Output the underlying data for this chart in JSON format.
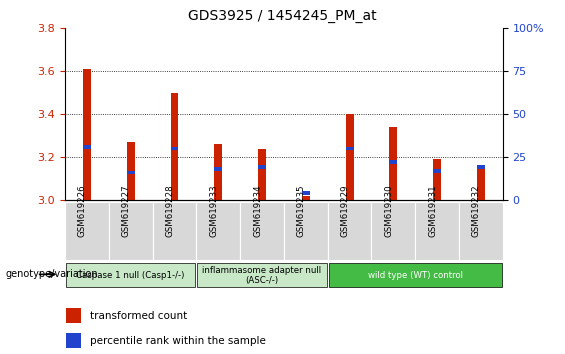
{
  "title": "GDS3925 / 1454245_PM_at",
  "samples": [
    "GSM619226",
    "GSM619227",
    "GSM619228",
    "GSM619233",
    "GSM619234",
    "GSM619235",
    "GSM619229",
    "GSM619230",
    "GSM619231",
    "GSM619232"
  ],
  "red_values": [
    3.61,
    3.27,
    3.5,
    3.26,
    3.24,
    3.02,
    3.4,
    3.34,
    3.19,
    3.16
  ],
  "blue_values": [
    0.31,
    0.16,
    0.3,
    0.18,
    0.19,
    0.04,
    0.3,
    0.22,
    0.17,
    0.19
  ],
  "ylim_left": [
    3.0,
    3.8
  ],
  "ylim_right": [
    0,
    100
  ],
  "yticks_left": [
    3.0,
    3.2,
    3.4,
    3.6,
    3.8
  ],
  "yticks_right": [
    0,
    25,
    50,
    75,
    100
  ],
  "groups": [
    {
      "label": "Caspase 1 null (Casp1-/-)",
      "start": 0,
      "end": 3,
      "color": "#c8e8c8"
    },
    {
      "label": "inflammasome adapter null\n(ASC-/-)",
      "start": 3,
      "end": 6,
      "color": "#c8e8c8"
    },
    {
      "label": "wild type (WT) control",
      "start": 6,
      "end": 10,
      "color": "#44bb44"
    }
  ],
  "bar_width": 0.18,
  "red_color": "#cc2200",
  "blue_color": "#2244cc",
  "base_value": 3.0,
  "ylabel_left_color": "#cc2200",
  "ylabel_right_color": "#2244cc",
  "grid_color": "#000000",
  "legend_red": "transformed count",
  "legend_blue": "percentile rank within the sample",
  "genotype_label": "genotype/variation",
  "bg_color": "#f0f0f0"
}
